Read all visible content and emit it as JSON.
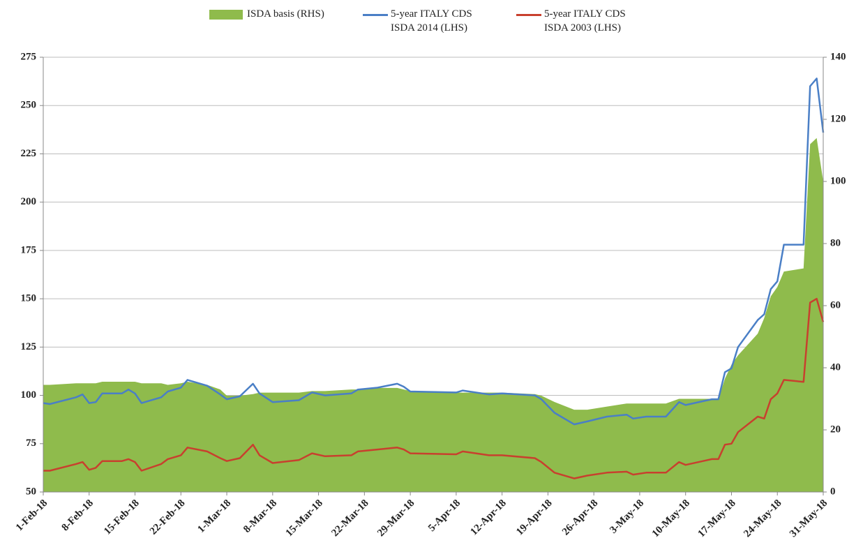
{
  "chart_data": {
    "type": "line",
    "x": [
      "1-Feb-18",
      "2-Feb-18",
      "6-Feb-18",
      "7-Feb-18",
      "8-Feb-18",
      "9-Feb-18",
      "10-Feb-18",
      "12-Feb-18",
      "13-Feb-18",
      "14-Feb-18",
      "15-Feb-18",
      "16-Feb-18",
      "19-Feb-18",
      "20-Feb-18",
      "22-Feb-18",
      "23-Feb-18",
      "26-Feb-18",
      "28-Feb-18",
      "1-Mar-18",
      "3-Mar-18",
      "5-Mar-18",
      "6-Mar-18",
      "8-Mar-18",
      "12-Mar-18",
      "14-Mar-18",
      "16-Mar-18",
      "20-Mar-18",
      "21-Mar-18",
      "24-Mar-18",
      "27-Mar-18",
      "28-Mar-18",
      "29-Mar-18",
      "5-Apr-18",
      "6-Apr-18",
      "10-Apr-18",
      "12-Apr-18",
      "17-Apr-18",
      "18-Apr-18",
      "20-Apr-18",
      "23-Apr-18",
      "25-Apr-18",
      "28-Apr-18",
      "1-May-18",
      "2-May-18",
      "4-May-18",
      "7-May-18",
      "9-May-18",
      "10-May-18",
      "14-May-18",
      "15-May-18",
      "16-May-18",
      "17-May-18",
      "18-May-18",
      "21-May-18",
      "22-May-18",
      "23-May-18",
      "24-May-18",
      "25-May-18",
      "28-May-18",
      "29-May-18",
      "30-May-18",
      "31-May-18"
    ],
    "series": [
      {
        "name": "ISDA basis (RHS)",
        "kind": "area",
        "axis": "y2",
        "color": "#8fbb4c",
        "values": [
          34.5,
          34.5,
          35,
          35,
          35,
          35,
          35.5,
          35.5,
          35.5,
          35.5,
          35.5,
          35,
          35,
          34.5,
          35,
          35.5,
          34.5,
          33,
          31,
          31,
          31.5,
          32,
          32,
          32,
          32.5,
          32.5,
          33,
          33,
          33.5,
          33.5,
          33,
          32.5,
          32,
          32,
          32,
          32,
          31.5,
          31,
          29,
          26.5,
          26.5,
          27.5,
          28.5,
          28.5,
          28.5,
          28.5,
          30,
          30,
          30,
          30,
          36.5,
          41,
          44,
          51,
          56,
          63,
          66,
          71,
          72,
          112,
          114,
          100
        ]
      },
      {
        "name": "5-year ITALY CDS\nISDA 2014 (LHS)",
        "kind": "line",
        "axis": "y",
        "color": "#4a7fc6",
        "values": [
          96,
          95.5,
          99,
          100.5,
          96,
          96.5,
          101,
          101,
          101,
          103,
          101,
          96,
          99,
          102,
          104,
          108,
          105,
          100.5,
          98,
          99.5,
          106,
          101,
          96.5,
          97.5,
          101.5,
          100,
          101,
          103,
          104,
          106,
          104.5,
          102,
          101.5,
          102.5,
          100.5,
          101,
          100,
          98,
          91,
          85,
          86.5,
          89,
          90,
          88,
          89,
          89,
          96.5,
          95,
          98,
          98,
          112,
          114,
          125,
          139,
          142,
          155,
          159,
          178,
          178,
          260,
          264,
          236
        ]
      },
      {
        "name": "5-year ITALY CDS\nISDA 2003 (LHS)",
        "kind": "line",
        "axis": "y",
        "color": "#c8402e",
        "values": [
          61,
          61,
          64.5,
          65.5,
          61.5,
          62.5,
          66,
          66,
          66,
          67,
          65.5,
          61,
          64.5,
          67,
          69,
          73,
          71,
          67.5,
          66,
          67.5,
          74.5,
          69,
          65,
          66.5,
          70,
          68.5,
          69,
          71,
          72,
          73,
          72,
          70,
          69.5,
          71,
          69,
          69,
          67.5,
          65.5,
          60,
          57,
          58.5,
          60,
          60.5,
          59,
          60,
          60,
          65.5,
          64,
          67,
          67,
          74.5,
          75,
          81,
          89,
          88,
          98,
          101,
          108,
          107,
          148,
          150,
          138
        ]
      }
    ],
    "xlim": [
      "1-Feb-18",
      "31-May-18"
    ],
    "xticks": [
      "1-Feb-18",
      "8-Feb-18",
      "15-Feb-18",
      "22-Feb-18",
      "1-Mar-18",
      "8-Mar-18",
      "15-Mar-18",
      "22-Mar-18",
      "29-Mar-18",
      "5-Apr-18",
      "12-Apr-18",
      "19-Apr-18",
      "26-Apr-18",
      "3-May-18",
      "10-May-18",
      "17-May-18",
      "24-May-18",
      "31-May-18"
    ],
    "ylim": [
      50,
      275
    ],
    "yticks": [
      50,
      75,
      100,
      125,
      150,
      175,
      200,
      225,
      250,
      275
    ],
    "y2lim": [
      0,
      140
    ],
    "y2ticks": [
      0,
      20,
      40,
      60,
      80,
      100,
      120,
      140
    ],
    "grid": true,
    "legend": "top"
  }
}
